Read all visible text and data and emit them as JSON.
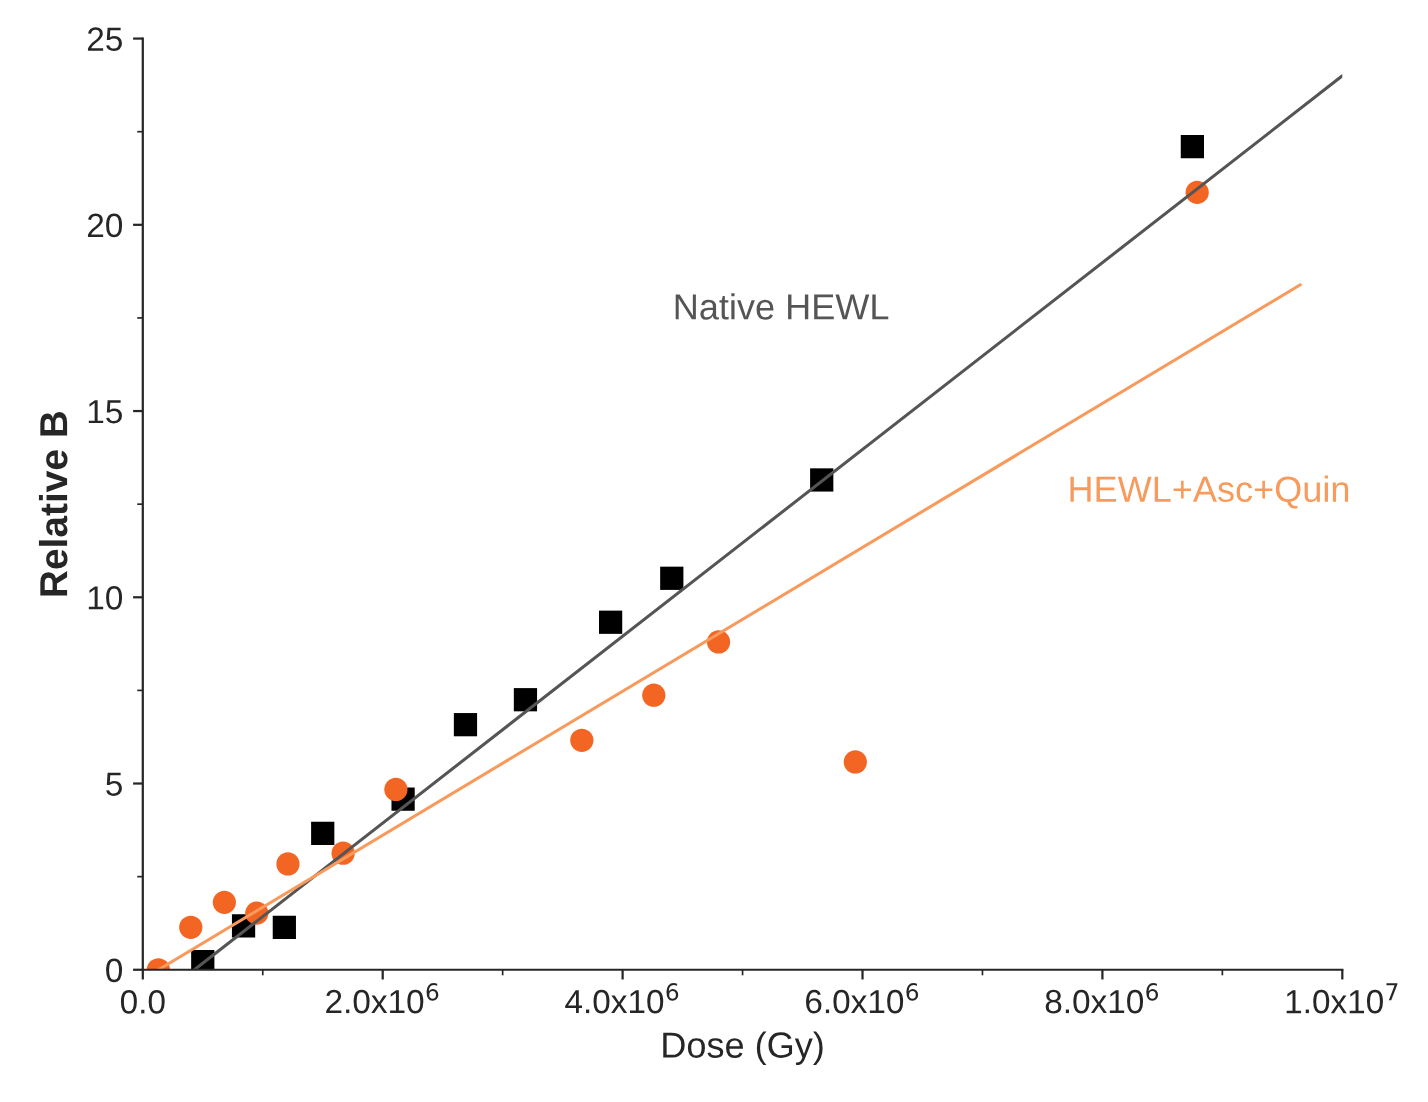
{
  "chart_data": {
    "type": "scatter",
    "xlabel": "Dose (Gy)",
    "ylabel": "Relative B",
    "xlim": [
      0,
      10000000
    ],
    "ylim": [
      0,
      25
    ],
    "xticks": [
      {
        "value": 0,
        "label": "0.0"
      },
      {
        "value": 2000000,
        "label": "2.0x10$^{6}$"
      },
      {
        "value": 4000000,
        "label": "4.0x10$^{6}$"
      },
      {
        "value": 6000000,
        "label": "6.0x10$^{6}$"
      },
      {
        "value": 8000000,
        "label": "8.0x10$^{6}$"
      },
      {
        "value": 10000000,
        "label": "1.0x10$^{7}$"
      }
    ],
    "yticks": [
      0,
      5,
      10,
      15,
      20,
      25
    ],
    "grid": false,
    "legend": false,
    "series": [
      {
        "marker": "square",
        "color": "#000000",
        "x": [
          500000,
          840000,
          1180000,
          1500000,
          2170000,
          2690000,
          3190000,
          3900000,
          4410000,
          5660000,
          8750000
        ],
        "values": [
          0.22,
          1.18,
          1.14,
          3.66,
          4.58,
          6.58,
          7.25,
          9.33,
          10.51,
          13.15,
          22.1
        ]
      },
      {
        "marker": "circle",
        "color": "#f26522",
        "x": [
          130000,
          400000,
          680000,
          950000,
          1210000,
          1670000,
          2110000,
          3660000,
          4260000,
          4800000,
          5940000,
          8790000
        ],
        "values": [
          0,
          1.14,
          1.81,
          1.52,
          2.84,
          3.13,
          4.84,
          6.16,
          7.37,
          8.8,
          5.58,
          20.87
        ]
      },
      {
        "type": "line",
        "name": "Native HEWL",
        "color": "#555555",
        "x": [
          430000,
          10000000
        ],
        "values": [
          0,
          24.0
        ]
      },
      {
        "type": "line",
        "name": "HEWL+Asc+Quin",
        "color": "#f79a5c",
        "x": [
          130000,
          9650000
        ],
        "values": [
          0,
          18.39
        ]
      }
    ]
  }
}
